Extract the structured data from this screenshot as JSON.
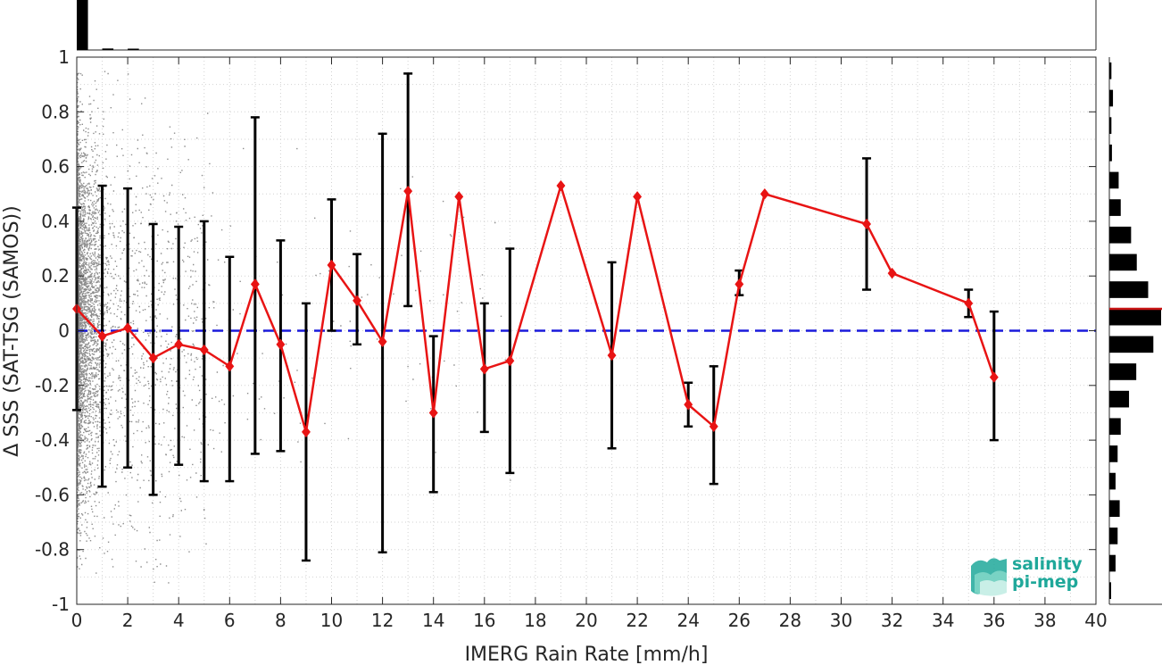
{
  "chart_data": {
    "type": "line",
    "xlabel": "IMERG Rain Rate [mm/h]",
    "ylabel": "Δ SSS (SAT-TSG (SAMOS))",
    "xlim": [
      0,
      40
    ],
    "ylim": [
      -1,
      1
    ],
    "xticks": [
      "0",
      "2",
      "4",
      "6",
      "8",
      "10",
      "12",
      "14",
      "16",
      "18",
      "20",
      "22",
      "24",
      "26",
      "28",
      "30",
      "32",
      "34",
      "36",
      "38",
      "40"
    ],
    "yticks": [
      "1",
      "0.8",
      "0.6",
      "0.4",
      "0.2",
      "0",
      "-0.2",
      "-0.4",
      "-0.6",
      "-0.8",
      "-1"
    ],
    "grid": true,
    "zero_line": {
      "y": 0,
      "color": "#1a1adb",
      "style": "dashed"
    },
    "series": [
      {
        "color": "#e81414",
        "marker": "diamond",
        "x": [
          0,
          1,
          2,
          3,
          4,
          5,
          6,
          7,
          8,
          9,
          10,
          11,
          12,
          13,
          14,
          15,
          16,
          17,
          19,
          21,
          22,
          24,
          25,
          26,
          27,
          31,
          32,
          35,
          36
        ],
        "y": [
          0.08,
          -0.02,
          0.01,
          -0.1,
          -0.05,
          -0.07,
          -0.13,
          0.17,
          -0.05,
          -0.37,
          0.24,
          0.11,
          -0.04,
          0.51,
          -0.3,
          0.49,
          -0.14,
          -0.11,
          0.53,
          -0.09,
          0.49,
          -0.27,
          -0.35,
          0.17,
          0.5,
          0.39,
          0.21,
          0.1,
          -0.17
        ],
        "err_low": [
          -0.29,
          -0.57,
          -0.5,
          -0.6,
          -0.49,
          -0.55,
          -0.55,
          -0.45,
          -0.44,
          -0.84,
          0.0,
          -0.05,
          -0.81,
          0.09,
          -0.59,
          null,
          -0.37,
          -0.52,
          null,
          -0.43,
          null,
          -0.35,
          -0.56,
          0.13,
          null,
          0.15,
          null,
          0.05,
          -0.4
        ],
        "err_high": [
          0.45,
          0.53,
          0.52,
          0.39,
          0.38,
          0.4,
          0.27,
          0.78,
          0.33,
          0.1,
          0.48,
          0.28,
          0.72,
          0.94,
          -0.02,
          null,
          0.1,
          0.3,
          null,
          0.25,
          null,
          -0.19,
          -0.13,
          0.22,
          null,
          0.63,
          null,
          0.15,
          0.07
        ]
      }
    ],
    "scatter_cloud": {
      "color": "#8c8c8c",
      "note_x_range": [
        0,
        4
      ]
    },
    "top_histogram": {
      "bin_width": 1,
      "fractions": [
        1.0,
        0.03,
        0.01
      ]
    },
    "right_histogram": {
      "bin_width": 0.1,
      "bins": [
        0.95,
        0.85,
        0.75,
        0.65,
        0.55,
        0.45,
        0.35,
        0.25,
        0.15,
        0.05,
        -0.05,
        -0.15,
        -0.25,
        -0.35,
        -0.45,
        -0.55,
        -0.65,
        -0.75,
        -0.85,
        -0.95
      ],
      "fractions": [
        0.04,
        0.07,
        0.04,
        0.05,
        0.18,
        0.22,
        0.42,
        0.53,
        0.75,
        1.0,
        0.85,
        0.52,
        0.38,
        0.22,
        0.16,
        0.12,
        0.2,
        0.16,
        0.12,
        0.02
      ],
      "mean_line": {
        "y": 0.08,
        "color": "#c81414"
      }
    }
  },
  "logo": {
    "line1": "salinity",
    "line2": "pi-mep",
    "color": "#1fa89a"
  }
}
